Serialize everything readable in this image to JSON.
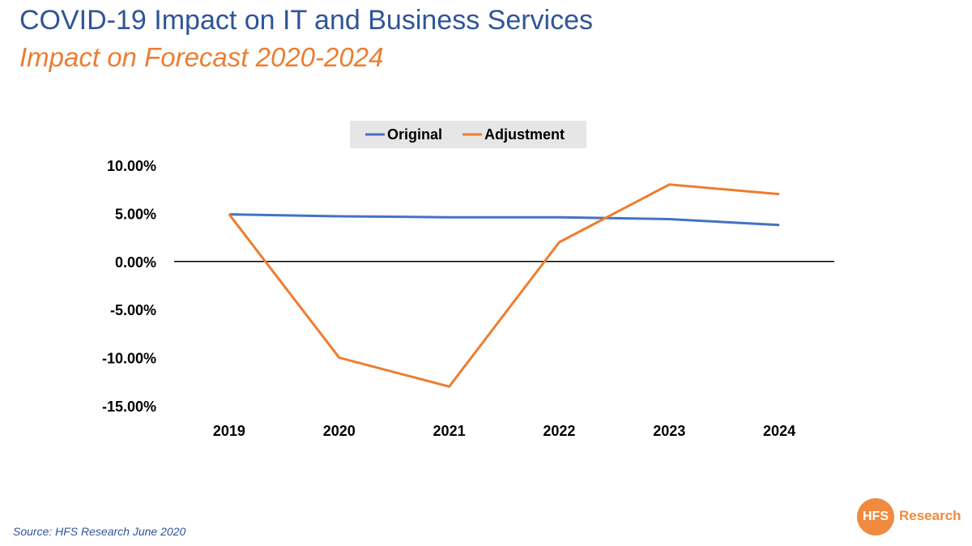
{
  "header": {
    "title": "COVID-19 Impact on IT and Business Services",
    "subtitle": "Impact on Forecast 2020-2024"
  },
  "footer": {
    "source": "Source: HFS Research June 2020",
    "logo_mark": "HFS",
    "logo_text": "Research"
  },
  "colors": {
    "original": "#4472C4",
    "adjustment": "#ED7D31",
    "title": "#2F5597",
    "logo": "#F08A3E",
    "legend_bg": "#E7E6E6"
  },
  "chart_data": {
    "type": "line",
    "title": "",
    "xlabel": "",
    "ylabel": "",
    "categories": [
      "2019",
      "2020",
      "2021",
      "2022",
      "2023",
      "2024"
    ],
    "series": [
      {
        "name": "Original",
        "values": [
          4.9,
          4.7,
          4.6,
          4.6,
          4.4,
          3.8
        ]
      },
      {
        "name": "Adjustment",
        "values": [
          4.9,
          -10.0,
          -13.0,
          2.0,
          8.0,
          7.0
        ]
      }
    ],
    "ylim": [
      -15,
      10
    ],
    "yticks": [
      10,
      5,
      0,
      -5,
      -10,
      -15
    ],
    "ytick_labels": [
      "10.00%",
      "5.00%",
      "0.00%",
      "-5.00%",
      "-10.00%",
      "-15.00%"
    ],
    "grid": false,
    "legend": "top-center"
  }
}
